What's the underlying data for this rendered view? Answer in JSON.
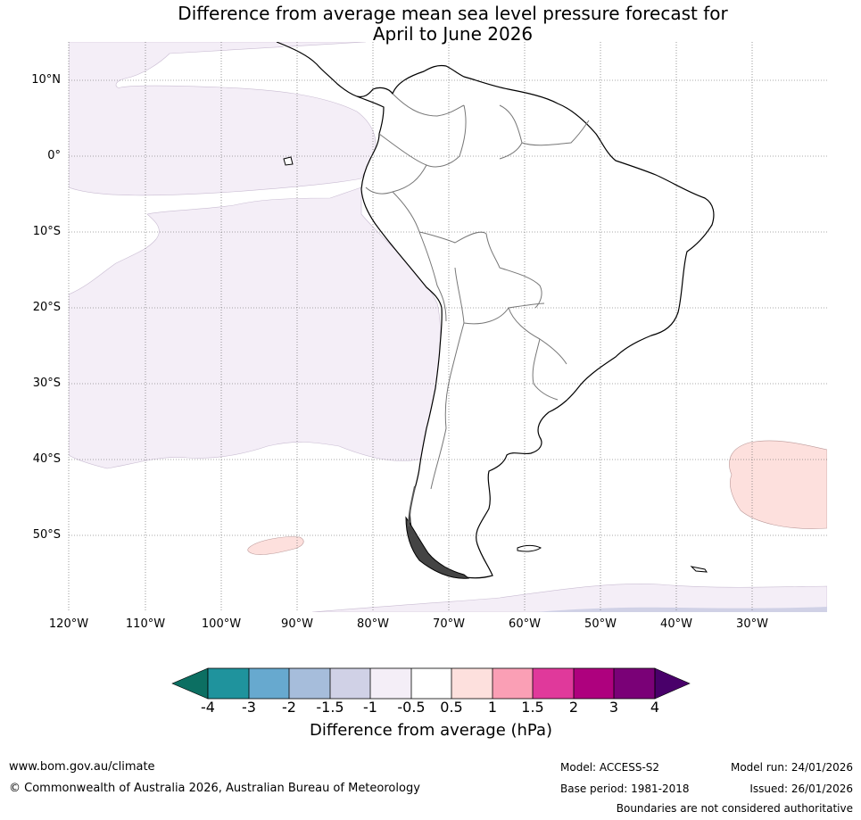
{
  "title": {
    "line1": "Difference from average mean sea level pressure forecast for",
    "line2": "April to June 2026"
  },
  "map": {
    "lat_labels": [
      "10°N",
      "0°",
      "10°S",
      "20°S",
      "30°S",
      "40°S",
      "50°S"
    ],
    "lon_labels": [
      "120°W",
      "110°W",
      "100°W",
      "90°W",
      "80°W",
      "70°W",
      "60°W",
      "50°W",
      "40°W",
      "30°W"
    ],
    "anomaly_regions": [
      {
        "name": "eastern-pacific",
        "level": "-1 to -0.5 hPa"
      },
      {
        "name": "south-atlantic-east",
        "level": "0.5 to 1 hPa"
      },
      {
        "name": "south-pacific-small",
        "level": "0.5 to 1 hPa"
      },
      {
        "name": "southern-ocean-band",
        "level": "-1 to -0.5 hPa"
      }
    ]
  },
  "colorbar": {
    "tick_labels": [
      "-4",
      "-3",
      "-2",
      "-1.5",
      "-1",
      "-0.5",
      "0.5",
      "1",
      "1.5",
      "2",
      "3",
      "4"
    ],
    "colors": [
      "#0c6f62",
      "#1f939d",
      "#67a9cf",
      "#a6bddb",
      "#d0d1e6",
      "#f4eef7",
      "#ffffff",
      "#fde0dd",
      "#fa9fb5",
      "#e0399b",
      "#ae017e",
      "#7a0177",
      "#49006a"
    ],
    "label": "Difference from average (hPa)"
  },
  "footer": {
    "url": "www.bom.gov.au/climate",
    "copyright": "© Commonwealth of Australia 2026, Australian Bureau of Meteorology",
    "model": "Model: ACCESS-S2",
    "base_period": "Base period: 1981-2018",
    "model_run": "Model run: 24/01/2026",
    "issued": "Issued: 26/01/2026",
    "disclaimer": "Boundaries are not considered authoritative"
  }
}
